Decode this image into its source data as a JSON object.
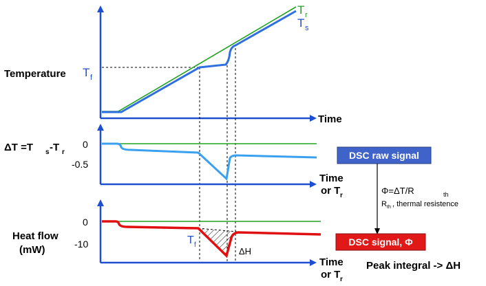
{
  "colors": {
    "axis": "#1f4fd1",
    "reference": "#1fa31f",
    "sample": "#2f6fe0",
    "delta": "#3aa0f0",
    "heatflow": "#e01010",
    "raw_box": "#3f63c8",
    "signal_box": "#e01818"
  },
  "panel_temperature": {
    "ylabel": "Temperature",
    "tf_label": "T",
    "tf_sub": "f",
    "tr_label": "T",
    "tr_sub": "r",
    "ts_label": "T",
    "ts_sub": "s",
    "xlabel": "Time"
  },
  "panel_delta": {
    "ylabel_prefix": "ΔT =T",
    "ylabel_s": "s",
    "ylabel_mid": "-T",
    "ylabel_r": "r",
    "tick_0": "0",
    "tick_1": "-0.5",
    "xlabel_line1": "Time",
    "xlabel_line2": "or T",
    "xlabel_line2_sub": "r"
  },
  "panel_heat": {
    "ylabel_line1": "Heat flow",
    "ylabel_line2": "(mW)",
    "tick_0": "0",
    "tick_1": "-10",
    "tf_label": "T",
    "tf_sub": "f",
    "dh_label": "ΔH",
    "xlabel_line1": "Time",
    "xlabel_line2": "or T",
    "xlabel_line2_sub": "r"
  },
  "right": {
    "raw_signal": "DSC raw signal",
    "formula_main": "Φ=ΔT/R",
    "formula_sub": "th",
    "rth_label": "R",
    "rth_sub": "th",
    "rth_rest": ", thermal resistence",
    "dsc_signal": "DSC signal, Φ",
    "peak_integral": "Peak integral -> ΔH"
  }
}
